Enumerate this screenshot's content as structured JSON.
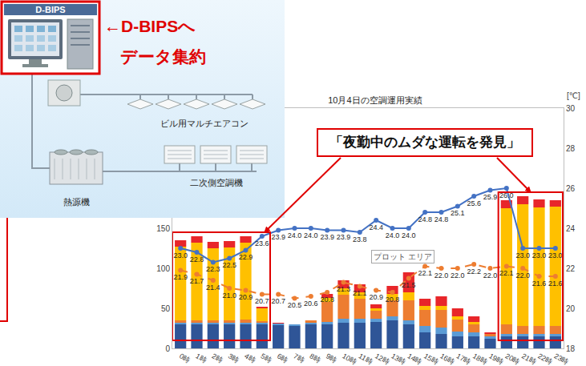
{
  "diagram": {
    "system": "D-BIPS",
    "arrow_label": [
      "←D-BIPSへ",
      "データ集約"
    ],
    "nodes": [
      {
        "label": "ビル用マルチエアコン"
      },
      {
        "label": "熱源機"
      },
      {
        "label": "二次側空調機"
      }
    ]
  },
  "chart_data": {
    "type": "bar",
    "title": "10月4日の空調運用実績",
    "categories": [
      "0時",
      "1時",
      "2時",
      "3時",
      "4時",
      "5時",
      "6時",
      "7時",
      "8時",
      "9時",
      "10時",
      "11時",
      "12時",
      "13時",
      "14時",
      "15時",
      "16時",
      "17時",
      "18時",
      "19時",
      "20時",
      "21時",
      "22時",
      "23時"
    ],
    "stacked": true,
    "grid": false,
    "ylim": [
      0,
      300
    ],
    "yticks": [
      0,
      50,
      100,
      150
    ],
    "y2lim": [
      18,
      30
    ],
    "y2ticks": [
      18,
      20,
      22,
      24,
      26,
      28,
      30
    ],
    "y2label": "[℃]",
    "annotations": [
      "「夜勤中のムダな運転を発見」",
      "プロット エリア"
    ],
    "series": [
      {
        "type": "bar",
        "color": "#2f5597",
        "values": [
          30,
          30,
          30,
          30,
          30,
          30,
          29,
          28,
          30,
          30,
          32,
          32,
          33,
          35,
          30,
          20,
          18,
          15,
          15,
          12,
          15,
          15,
          15,
          15
        ]
      },
      {
        "type": "bar",
        "color": "#5b9bd5",
        "values": [
          2,
          2,
          2,
          2,
          2,
          2,
          2,
          2,
          2,
          3,
          5,
          5,
          4,
          5,
          5,
          8,
          8,
          6,
          5,
          3,
          3,
          3,
          3,
          3
        ]
      },
      {
        "type": "bar",
        "color": "#ed7d31",
        "values": [
          3,
          3,
          3,
          3,
          4,
          2,
          0,
          0,
          3,
          25,
          30,
          25,
          10,
          20,
          25,
          20,
          22,
          15,
          10,
          3,
          12,
          10,
          10,
          10
        ]
      },
      {
        "type": "bar",
        "color": "#ffc000",
        "values": [
          92,
          97,
          90,
          91,
          96,
          16,
          0,
          0,
          0,
          5,
          8,
          8,
          3,
          8,
          10,
          5,
          5,
          4,
          3,
          0,
          145,
          152,
          148,
          149
        ]
      },
      {
        "type": "bar",
        "color": "#e8262a",
        "values": [
          8,
          8,
          8,
          8,
          8,
          2,
          1,
          0,
          0,
          5,
          10,
          10,
          5,
          10,
          25,
          9,
          12,
          10,
          7,
          2,
          10,
          10,
          10,
          8
        ]
      },
      {
        "type": "line",
        "axis": "y2",
        "color": "#4472c4",
        "marker": "circle",
        "line_style": "solid",
        "data_labels": true,
        "values": [
          23.0,
          22.8,
          22.3,
          22.5,
          22.9,
          23.6,
          23.9,
          24.0,
          24.0,
          23.9,
          23.9,
          23.8,
          24.4,
          24.0,
          24.0,
          24.8,
          24.8,
          25.1,
          25.6,
          25.9,
          26.0,
          23.0,
          23.0,
          23.0
        ],
        "value_labels": [
          "23.0",
          "22.8",
          "22.3",
          "22.5",
          "22.9",
          "23.6",
          "23.9",
          "24.0",
          "24.0",
          "23.9",
          "23.9",
          "23.8",
          "24.4",
          "24.0",
          "24.0",
          "24.8",
          "24.8",
          "25.1",
          "25.6",
          "25.9",
          "26.0",
          "23.0",
          "23.0",
          "23.0"
        ]
      },
      {
        "type": "line",
        "axis": "y2",
        "color": "#ed7d31",
        "marker": "circle",
        "line_style": "dashed",
        "data_labels": true,
        "values": [
          21.9,
          21.7,
          21.4,
          21.0,
          20.9,
          20.7,
          20.7,
          20.5,
          20.6,
          20.8,
          21.3,
          21.1,
          20.9,
          20.8,
          21.5,
          22.1,
          22.0,
          22.0,
          22.2,
          22.0,
          22.1,
          22.0,
          21.6,
          21.6
        ],
        "value_labels": [
          "21.9",
          "21.7",
          "21.4",
          "21.0",
          "20.9",
          "20.7",
          "20.7",
          "20.5",
          "20.6",
          "20.8",
          "21.3",
          "21.1",
          "20.9",
          "20.8",
          "21.5",
          "22.1",
          "22.0",
          "22.0",
          "22.2",
          "22.0",
          "22.1",
          "22.0",
          "21.6",
          "21.6"
        ]
      }
    ]
  }
}
